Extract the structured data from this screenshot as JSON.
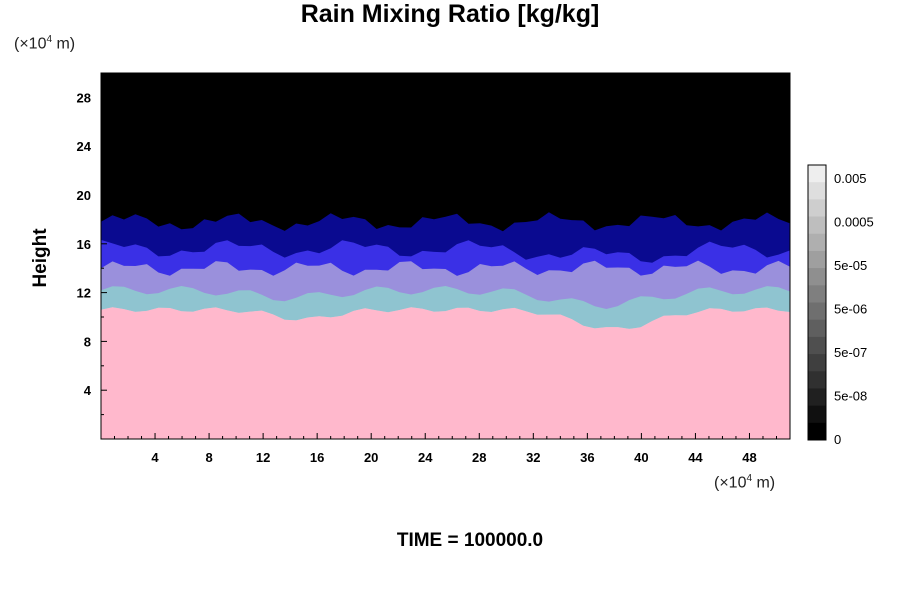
{
  "chart_data": {
    "type": "heatmap",
    "title": "Rain Mixing Ratio [kg/kg]",
    "xlabel": "",
    "ylabel": "Height",
    "x_unit": [
      "(×10",
      "4",
      " m)"
    ],
    "y_unit": [
      "(×10",
      "4",
      " m)"
    ],
    "xlim": [
      0,
      51
    ],
    "ylim": [
      0,
      30
    ],
    "x_ticks": [
      4,
      8,
      12,
      16,
      20,
      24,
      28,
      32,
      36,
      40,
      44,
      48
    ],
    "y_ticks": [
      4,
      8,
      12,
      16,
      20,
      24,
      28
    ],
    "colorbar": {
      "labels": [
        "0.005",
        "0.0005",
        "5e-05",
        "5e-06",
        "5e-07",
        "5e-08",
        "0"
      ],
      "levels": 16
    },
    "layers": [
      {
        "name": "pink",
        "color": "#ffb8cc"
      },
      {
        "name": "light-cyan",
        "color": "#b0d8e0"
      },
      {
        "name": "cyan-grey",
        "color": "#8fc4d0"
      },
      {
        "name": "lavender",
        "color": "#9a90dc"
      },
      {
        "name": "blue",
        "color": "#3a30e6"
      },
      {
        "name": "dark-blue",
        "color": "#0a0a90"
      },
      {
        "name": "black",
        "color": "#000000"
      }
    ]
  },
  "footer": "TIME = 100000.0"
}
